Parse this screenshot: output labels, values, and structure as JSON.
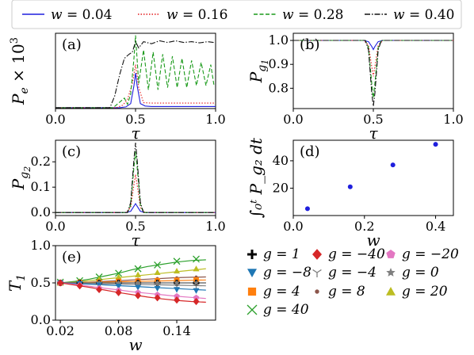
{
  "figure": {
    "top_legend": [
      {
        "var": "w",
        "eq": " = ",
        "val": "0.04",
        "color": "#1f1fdd",
        "dash": ""
      },
      {
        "var": "w",
        "eq": " = ",
        "val": "0.16",
        "color": "#e31a1c",
        "dash": "1.5,2"
      },
      {
        "var": "w",
        "eq": " = ",
        "val": "0.28",
        "color": "#1a9a1a",
        "dash": "5,2.5"
      },
      {
        "var": "w",
        "eq": " = ",
        "val": "0.40",
        "color": "#111111",
        "dash": "7,2,1.5,2"
      }
    ],
    "bottom_legend": [
      {
        "text": "g = 1",
        "marker": "plus",
        "color": "#000000"
      },
      {
        "text": "g = −40",
        "marker": "diamond",
        "color": "#d62728"
      },
      {
        "text": "g = −20",
        "marker": "pentagon",
        "color": "#e377c2"
      },
      {
        "text": "g = −8",
        "marker": "tri_down",
        "color": "#1f77b4"
      },
      {
        "text": "g = −4",
        "marker": "tri_y",
        "color": "#7f7f7f"
      },
      {
        "text": "g = 0",
        "marker": "star",
        "color": "#7f7f7f"
      },
      {
        "text": "g = 4",
        "marker": "square",
        "color": "#ff7f0e"
      },
      {
        "text": "g = 8",
        "marker": "dot",
        "color": "#8c564b"
      },
      {
        "text": "g = 20",
        "marker": "tri_up",
        "color": "#bcbd22"
      },
      {
        "text": "g = 40",
        "marker": "x",
        "color": "#2ca02c"
      }
    ]
  },
  "chart_data": [
    {
      "id": "a",
      "panel_label": "(a)",
      "type": "line",
      "ylabel_main": "P",
      "ylabel_sub": "e",
      "ylabel_suffix": " × 10",
      "ylabel_sup": "3",
      "xlabel": "τ",
      "xlim": [
        0,
        1
      ],
      "ylim": [
        0,
        1.8
      ],
      "xticks": [
        0.0,
        0.5,
        1.0
      ],
      "xtick_labels": [
        "0.0",
        "0.5",
        "1.0"
      ],
      "yticks": [],
      "ytick_labels": [],
      "series": [
        {
          "name": "w = 0.04",
          "color": "#1f1fdd",
          "dash": "",
          "x": [
            0.0,
            0.4,
            0.44,
            0.47,
            0.49,
            0.5,
            0.51,
            0.53,
            0.56,
            0.6,
            1.0
          ],
          "y": [
            0.02,
            0.02,
            0.04,
            0.12,
            0.55,
            0.85,
            0.55,
            0.12,
            0.06,
            0.05,
            0.05
          ]
        },
        {
          "name": "w = 0.16",
          "color": "#e31a1c",
          "dash": "1.5,2",
          "x": [
            0.0,
            0.38,
            0.42,
            0.45,
            0.48,
            0.5,
            0.52,
            0.55,
            0.6,
            1.0
          ],
          "y": [
            0.02,
            0.02,
            0.08,
            0.22,
            0.6,
            1.05,
            0.5,
            0.14,
            0.13,
            0.13
          ]
        },
        {
          "name": "w = 0.28",
          "color": "#1a9a1a",
          "dash": "5,2.5",
          "x": [
            0.0,
            0.36,
            0.4,
            0.43,
            0.45,
            0.47,
            0.49,
            0.5,
            0.52,
            0.55,
            0.58,
            0.61,
            0.64,
            0.67,
            0.7,
            0.73,
            0.76,
            0.79,
            0.82,
            0.85,
            0.88,
            0.91,
            0.94,
            0.97,
            0.99
          ],
          "y": [
            0.02,
            0.02,
            0.15,
            0.25,
            0.1,
            0.35,
            1.2,
            1.75,
            0.6,
            1.4,
            0.45,
            1.35,
            0.45,
            1.3,
            0.5,
            1.25,
            0.5,
            1.2,
            0.5,
            1.15,
            0.55,
            1.1,
            0.55,
            1.05,
            0.55
          ]
        },
        {
          "name": "w = 0.40",
          "color": "#111111",
          "dash": "7,2,1.5,2",
          "x": [
            0.0,
            0.34,
            0.37,
            0.4,
            0.43,
            0.46,
            0.48,
            0.5,
            0.52,
            0.55,
            0.6,
            0.65,
            0.7,
            0.75,
            0.8,
            0.85,
            0.9,
            0.95,
            0.99
          ],
          "y": [
            0.02,
            0.02,
            0.3,
            0.8,
            1.2,
            1.3,
            1.35,
            1.6,
            1.45,
            1.6,
            1.55,
            1.62,
            1.58,
            1.62,
            1.58,
            1.6,
            1.57,
            1.6,
            1.58
          ]
        }
      ]
    },
    {
      "id": "b",
      "panel_label": "(b)",
      "type": "line",
      "ylabel_main": "P",
      "ylabel_sub": "g",
      "ylabel_subsub": "1",
      "xlabel": "τ",
      "xlim": [
        0,
        1
      ],
      "ylim": [
        0.715,
        1.03
      ],
      "xticks": [
        0.0,
        0.5,
        1.0
      ],
      "xtick_labels": [
        "0.0",
        "0.5",
        "1.0"
      ],
      "yticks": [
        0.8,
        0.9,
        1.0
      ],
      "ytick_labels": [
        "0.8",
        "0.9",
        "1.0"
      ],
      "series": [
        {
          "name": "w = 0.04",
          "color": "#1f1fdd",
          "dash": "",
          "x": [
            0.0,
            0.44,
            0.47,
            0.49,
            0.5,
            0.51,
            0.53,
            0.56,
            1.0
          ],
          "y": [
            1.0,
            1.0,
            0.995,
            0.975,
            0.962,
            0.975,
            0.995,
            1.0,
            1.0
          ]
        },
        {
          "name": "w = 0.16",
          "color": "#e31a1c",
          "dash": "1.5,2",
          "x": [
            0.0,
            0.44,
            0.47,
            0.49,
            0.5,
            0.51,
            0.53,
            0.56,
            1.0
          ],
          "y": [
            1.0,
            1.0,
            0.98,
            0.89,
            0.85,
            0.89,
            0.98,
            1.0,
            1.0
          ]
        },
        {
          "name": "w = 0.28",
          "color": "#1a9a1a",
          "dash": "5,2.5",
          "x": [
            0.0,
            0.45,
            0.47,
            0.49,
            0.5,
            0.51,
            0.53,
            0.55,
            1.0
          ],
          "y": [
            1.0,
            1.0,
            0.97,
            0.82,
            0.76,
            0.82,
            0.97,
            1.0,
            1.0
          ]
        },
        {
          "name": "w = 0.40",
          "color": "#111111",
          "dash": "7,2,1.5,2",
          "x": [
            0.0,
            0.45,
            0.47,
            0.49,
            0.5,
            0.51,
            0.53,
            0.55,
            1.0
          ],
          "y": [
            1.0,
            1.0,
            0.96,
            0.78,
            0.725,
            0.78,
            0.96,
            1.0,
            1.0
          ]
        }
      ]
    },
    {
      "id": "c",
      "panel_label": "(c)",
      "type": "line",
      "ylabel_main": "P",
      "ylabel_sub": "g",
      "ylabel_subsub": "2",
      "xlabel": "τ",
      "xlim": [
        0,
        1
      ],
      "ylim": [
        -0.012,
        0.285
      ],
      "xticks": [
        0.0,
        0.5,
        1.0
      ],
      "xtick_labels": [
        "0.0",
        "0.5",
        "1.0"
      ],
      "yticks": [
        0.0,
        0.1,
        0.2
      ],
      "ytick_labels": [
        "0.0",
        "0.1",
        "0.2"
      ],
      "series": [
        {
          "name": "w = 0.04",
          "color": "#1f1fdd",
          "dash": "",
          "x": [
            0.0,
            0.44,
            0.47,
            0.49,
            0.5,
            0.51,
            0.53,
            0.56,
            1.0
          ],
          "y": [
            0.0,
            0.0,
            0.005,
            0.025,
            0.035,
            0.025,
            0.005,
            0.0,
            0.0
          ]
        },
        {
          "name": "w = 0.16",
          "color": "#e31a1c",
          "dash": "1.5,2",
          "x": [
            0.0,
            0.44,
            0.47,
            0.49,
            0.5,
            0.51,
            0.53,
            0.56,
            1.0
          ],
          "y": [
            0.0,
            0.0,
            0.02,
            0.11,
            0.15,
            0.11,
            0.02,
            0.0,
            0.0
          ]
        },
        {
          "name": "w = 0.28",
          "color": "#1a9a1a",
          "dash": "5,2.5",
          "x": [
            0.0,
            0.45,
            0.47,
            0.49,
            0.5,
            0.51,
            0.53,
            0.55,
            1.0
          ],
          "y": [
            0.0,
            0.0,
            0.03,
            0.18,
            0.24,
            0.18,
            0.03,
            0.0,
            0.0
          ]
        },
        {
          "name": "w = 0.40",
          "color": "#111111",
          "dash": "7,2,1.5,2",
          "x": [
            0.0,
            0.45,
            0.47,
            0.49,
            0.5,
            0.51,
            0.53,
            0.55,
            1.0
          ],
          "y": [
            0.0,
            0.0,
            0.04,
            0.21,
            0.275,
            0.21,
            0.04,
            0.0,
            0.0
          ]
        }
      ]
    },
    {
      "id": "d",
      "panel_label": "(d)",
      "type": "scatter",
      "ylabel_text": "∫₀ᵗ P_g₂ dt",
      "xlabel": "w",
      "xlim": [
        0,
        0.45
      ],
      "ylim": [
        0,
        55
      ],
      "xticks": [
        0.0,
        0.2,
        0.4
      ],
      "xtick_labels": [
        "0.0",
        "0.2",
        "0.4"
      ],
      "yticks": [
        20,
        40
      ],
      "ytick_labels": [
        "20",
        "40"
      ],
      "series": [
        {
          "color": "#1f1fdd",
          "x": [
            0.04,
            0.16,
            0.28,
            0.4
          ],
          "y": [
            5,
            21,
            37,
            52
          ]
        }
      ]
    },
    {
      "id": "e",
      "panel_label": "(e)",
      "type": "line",
      "ylabel_main": "T",
      "ylabel_sub": "1",
      "xlabel": "w",
      "xlim": [
        0.015,
        0.18
      ],
      "ylim": [
        0.0,
        1.0
      ],
      "xticks": [
        0.02,
        0.08,
        0.14
      ],
      "xtick_labels": [
        "0.02",
        "0.08",
        "0.14"
      ],
      "yticks": [
        0.0,
        0.5,
        1.0
      ],
      "ytick_labels": [
        "0.0",
        "0.5",
        "1.0"
      ],
      "x": [
        0.02,
        0.04,
        0.06,
        0.08,
        0.1,
        0.12,
        0.14,
        0.16
      ],
      "curve_x": [
        0.02,
        0.035,
        0.05,
        0.065,
        0.08,
        0.095,
        0.11,
        0.125,
        0.14,
        0.155,
        0.17
      ],
      "series": [
        {
          "name": "g = 40",
          "marker": "x",
          "color": "#2ca02c",
          "points": [
            0.51,
            0.53,
            0.58,
            0.63,
            0.69,
            0.74,
            0.79,
            0.82
          ],
          "curve": [
            0.5,
            0.52,
            0.55,
            0.59,
            0.63,
            0.68,
            0.72,
            0.75,
            0.78,
            0.8,
            0.81
          ]
        },
        {
          "name": "g = 20",
          "marker": "tri_up",
          "color": "#bcbd22",
          "points": [
            0.5,
            0.52,
            0.55,
            0.58,
            0.61,
            0.64,
            0.66,
            0.69
          ],
          "curve": [
            0.5,
            0.51,
            0.53,
            0.55,
            0.57,
            0.59,
            0.61,
            0.63,
            0.65,
            0.67,
            0.69
          ]
        },
        {
          "name": "g = 8",
          "marker": "dot",
          "color": "#8c564b",
          "points": [
            0.5,
            0.51,
            0.52,
            0.54,
            0.55,
            0.56,
            0.57,
            0.58
          ],
          "curve": [
            0.5,
            0.505,
            0.51,
            0.52,
            0.53,
            0.54,
            0.55,
            0.56,
            0.57,
            0.575,
            0.58
          ]
        },
        {
          "name": "g = 4",
          "marker": "square",
          "color": "#ff7f0e",
          "points": [
            0.5,
            0.505,
            0.51,
            0.52,
            0.525,
            0.53,
            0.535,
            0.54
          ],
          "curve": [
            0.5,
            0.503,
            0.507,
            0.511,
            0.515,
            0.519,
            0.523,
            0.527,
            0.531,
            0.535,
            0.539
          ]
        },
        {
          "name": "g = 1",
          "marker": "plus",
          "color": "#000000",
          "points": [
            0.5,
            0.5,
            0.5,
            0.5,
            0.5,
            0.5,
            0.5,
            0.5
          ],
          "curve": [
            0.5,
            0.5,
            0.5,
            0.5,
            0.5,
            0.5,
            0.5,
            0.5,
            0.5,
            0.5,
            0.5
          ]
        },
        {
          "name": "g = 0",
          "marker": "star",
          "color": "#7f7f7f",
          "points": [
            0.5,
            0.5,
            0.5,
            0.5,
            0.5,
            0.5,
            0.5,
            0.5
          ],
          "curve": [
            0.5,
            0.5,
            0.5,
            0.5,
            0.5,
            0.5,
            0.5,
            0.5,
            0.5,
            0.5,
            0.5
          ]
        },
        {
          "name": "g = −4",
          "marker": "tri_y",
          "color": "#7f7f7f",
          "points": [
            0.5,
            0.495,
            0.49,
            0.48,
            0.475,
            0.47,
            0.465,
            0.46
          ],
          "curve": [
            0.5,
            0.497,
            0.493,
            0.489,
            0.485,
            0.481,
            0.477,
            0.473,
            0.469,
            0.465,
            0.461
          ]
        },
        {
          "name": "g = −8",
          "marker": "tri_down",
          "color": "#1f77b4",
          "points": [
            0.5,
            0.49,
            0.47,
            0.455,
            0.44,
            0.425,
            0.41,
            0.395
          ],
          "curve": [
            0.5,
            0.492,
            0.483,
            0.473,
            0.463,
            0.453,
            0.443,
            0.433,
            0.423,
            0.413,
            0.403
          ]
        },
        {
          "name": "g = −20",
          "marker": "pentagon",
          "color": "#e377c2",
          "points": [
            0.5,
            0.47,
            0.43,
            0.4,
            0.37,
            0.34,
            0.32,
            0.3
          ],
          "curve": [
            0.5,
            0.48,
            0.455,
            0.43,
            0.405,
            0.38,
            0.36,
            0.34,
            0.32,
            0.305,
            0.29
          ]
        },
        {
          "name": "g = −40",
          "marker": "diamond",
          "color": "#d62728",
          "points": [
            0.5,
            0.46,
            0.41,
            0.37,
            0.33,
            0.3,
            0.27,
            0.25
          ],
          "curve": [
            0.5,
            0.47,
            0.44,
            0.405,
            0.37,
            0.34,
            0.31,
            0.285,
            0.265,
            0.25,
            0.24
          ]
        }
      ]
    }
  ]
}
